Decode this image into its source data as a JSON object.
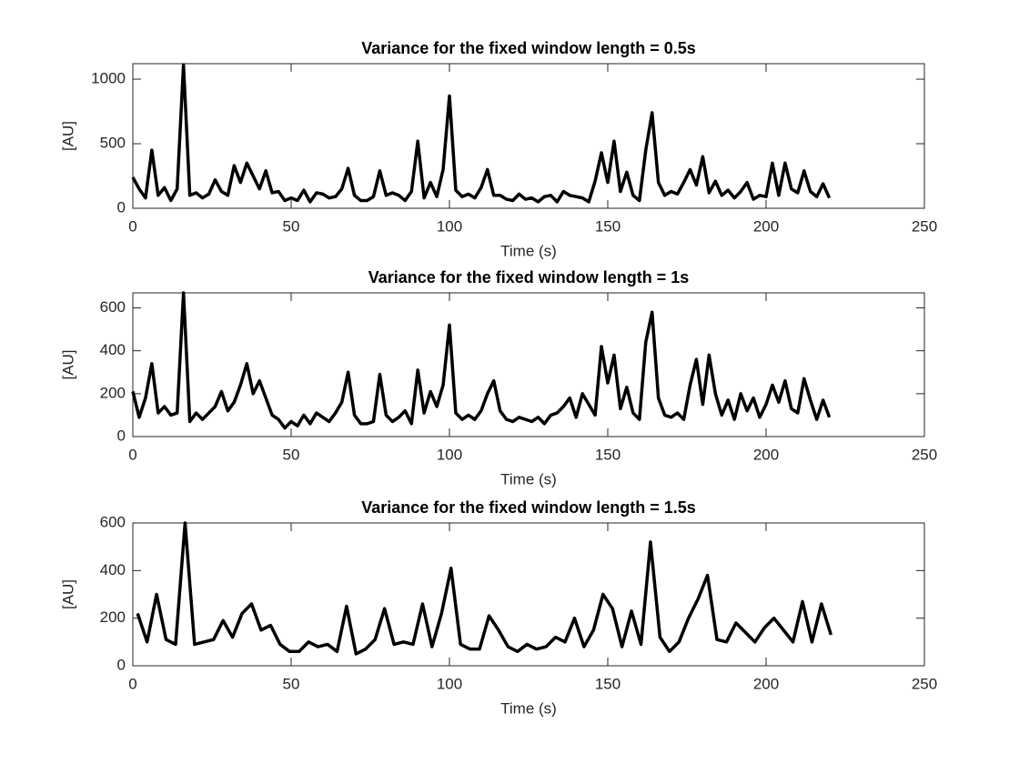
{
  "chart_data": [
    {
      "type": "line",
      "title": "Variance for the fixed window length = 0.5s",
      "xlabel": "Time (s)",
      "ylabel": "[AU]",
      "color": "#000000",
      "xlim": [
        0,
        250
      ],
      "xticks": [
        0,
        50,
        100,
        150,
        200,
        250
      ],
      "ylim": [
        0,
        1120
      ],
      "yticks": [
        0,
        500,
        1000
      ],
      "x": [
        0,
        2,
        4,
        6,
        8,
        10,
        12,
        14,
        16,
        18,
        20,
        22,
        24,
        26,
        28,
        30,
        32,
        34,
        36,
        38,
        40,
        42,
        44,
        46,
        48,
        50,
        52,
        54,
        56,
        58,
        60,
        62,
        64,
        66,
        68,
        70,
        72,
        74,
        76,
        78,
        80,
        82,
        84,
        86,
        88,
        90,
        92,
        94,
        96,
        98,
        100,
        102,
        104,
        106,
        108,
        110,
        112,
        114,
        116,
        118,
        120,
        122,
        124,
        126,
        128,
        130,
        132,
        134,
        136,
        138,
        140,
        142,
        144,
        146,
        148,
        150,
        152,
        154,
        156,
        158,
        160,
        162,
        164,
        166,
        168,
        170,
        172,
        174,
        176,
        178,
        180,
        182,
        184,
        186,
        188,
        190,
        192,
        194,
        196,
        198,
        200,
        202,
        204,
        206,
        208,
        210,
        212,
        214,
        216,
        218,
        220
      ],
      "values": [
        240,
        150,
        80,
        450,
        100,
        160,
        60,
        150,
        1110,
        100,
        120,
        80,
        110,
        220,
        130,
        100,
        330,
        200,
        350,
        250,
        150,
        290,
        120,
        130,
        60,
        80,
        60,
        140,
        50,
        120,
        110,
        80,
        90,
        150,
        310,
        100,
        60,
        60,
        90,
        290,
        100,
        120,
        100,
        60,
        130,
        520,
        80,
        200,
        90,
        300,
        870,
        140,
        90,
        110,
        80,
        160,
        300,
        100,
        100,
        70,
        60,
        110,
        70,
        80,
        50,
        90,
        100,
        50,
        130,
        100,
        90,
        80,
        50,
        210,
        430,
        200,
        520,
        130,
        280,
        100,
        60,
        450,
        740,
        200,
        100,
        130,
        110,
        200,
        300,
        180,
        400,
        120,
        210,
        100,
        140,
        80,
        130,
        200,
        70,
        100,
        90,
        350,
        100,
        350,
        150,
        120,
        290,
        130,
        90,
        190,
        80
      ]
    },
    {
      "type": "line",
      "title": "Variance for the fixed window length = 1s",
      "xlabel": "Time (s)",
      "ylabel": "[AU]",
      "color": "#000000",
      "xlim": [
        0,
        250
      ],
      "xticks": [
        0,
        50,
        100,
        150,
        200,
        250
      ],
      "ylim": [
        0,
        670
      ],
      "yticks": [
        0,
        200,
        400,
        600
      ],
      "x": [
        0,
        2,
        4,
        6,
        8,
        10,
        12,
        14,
        16,
        18,
        20,
        22,
        24,
        26,
        28,
        30,
        32,
        34,
        36,
        38,
        40,
        42,
        44,
        46,
        48,
        50,
        52,
        54,
        56,
        58,
        60,
        62,
        64,
        66,
        68,
        70,
        72,
        74,
        76,
        78,
        80,
        82,
        84,
        86,
        88,
        90,
        92,
        94,
        96,
        98,
        100,
        102,
        104,
        106,
        108,
        110,
        112,
        114,
        116,
        118,
        120,
        122,
        124,
        126,
        128,
        130,
        132,
        134,
        136,
        138,
        140,
        142,
        144,
        146,
        148,
        150,
        152,
        154,
        156,
        158,
        160,
        162,
        164,
        166,
        168,
        170,
        172,
        174,
        176,
        178,
        180,
        182,
        184,
        186,
        188,
        190,
        192,
        194,
        196,
        198,
        200,
        202,
        204,
        206,
        208,
        210,
        212,
        214,
        216,
        218,
        220
      ],
      "values": [
        210,
        90,
        180,
        340,
        110,
        140,
        100,
        110,
        670,
        70,
        110,
        80,
        110,
        140,
        210,
        120,
        160,
        240,
        340,
        200,
        260,
        180,
        100,
        80,
        40,
        70,
        50,
        100,
        60,
        110,
        90,
        70,
        110,
        160,
        300,
        100,
        60,
        60,
        70,
        290,
        100,
        70,
        90,
        120,
        60,
        310,
        110,
        210,
        140,
        240,
        520,
        110,
        80,
        100,
        80,
        120,
        200,
        260,
        120,
        80,
        70,
        90,
        80,
        70,
        90,
        60,
        100,
        110,
        140,
        180,
        90,
        200,
        150,
        100,
        420,
        250,
        380,
        130,
        230,
        110,
        80,
        440,
        580,
        180,
        100,
        90,
        110,
        80,
        240,
        360,
        150,
        380,
        200,
        100,
        170,
        80,
        200,
        120,
        180,
        90,
        150,
        240,
        160,
        260,
        130,
        110,
        270,
        170,
        80,
        170,
        90
      ]
    },
    {
      "type": "line",
      "title": "Variance for the fixed window length = 1.5s",
      "xlabel": "Time (s)",
      "ylabel": "[AU]",
      "color": "#000000",
      "xlim": [
        0,
        250
      ],
      "xticks": [
        0,
        50,
        100,
        150,
        200,
        250
      ],
      "ylim": [
        0,
        600
      ],
      "yticks": [
        0,
        200,
        400,
        600
      ],
      "x": [
        1.5,
        4.5,
        7.5,
        10.5,
        13.5,
        16.5,
        19.5,
        22.5,
        25.5,
        28.5,
        31.5,
        34.5,
        37.5,
        40.5,
        43.5,
        46.5,
        49.5,
        52.5,
        55.5,
        58.5,
        61.5,
        64.5,
        67.5,
        70.5,
        73.5,
        76.5,
        79.5,
        82.5,
        85.5,
        88.5,
        91.5,
        94.5,
        97.5,
        100.5,
        103.5,
        106.5,
        109.5,
        112.5,
        115.5,
        118.5,
        121.5,
        124.5,
        127.5,
        130.5,
        133.5,
        136.5,
        139.5,
        142.5,
        145.5,
        148.5,
        151.5,
        154.5,
        157.5,
        160.5,
        163.5,
        166.5,
        169.5,
        172.5,
        175.5,
        178.5,
        181.5,
        184.5,
        187.5,
        190.5,
        193.5,
        196.5,
        199.5,
        202.5,
        205.5,
        208.5,
        211.5,
        214.5,
        217.5,
        220.5
      ],
      "values": [
        220,
        100,
        300,
        110,
        90,
        600,
        90,
        100,
        110,
        190,
        120,
        220,
        260,
        150,
        170,
        90,
        60,
        60,
        100,
        80,
        90,
        60,
        250,
        50,
        70,
        110,
        240,
        90,
        100,
        90,
        260,
        80,
        220,
        410,
        90,
        70,
        70,
        210,
        150,
        80,
        60,
        90,
        70,
        80,
        120,
        100,
        200,
        80,
        150,
        300,
        240,
        80,
        230,
        90,
        520,
        120,
        60,
        100,
        200,
        280,
        380,
        110,
        100,
        180,
        140,
        100,
        160,
        200,
        150,
        100,
        270,
        100,
        260,
        130
      ]
    }
  ]
}
